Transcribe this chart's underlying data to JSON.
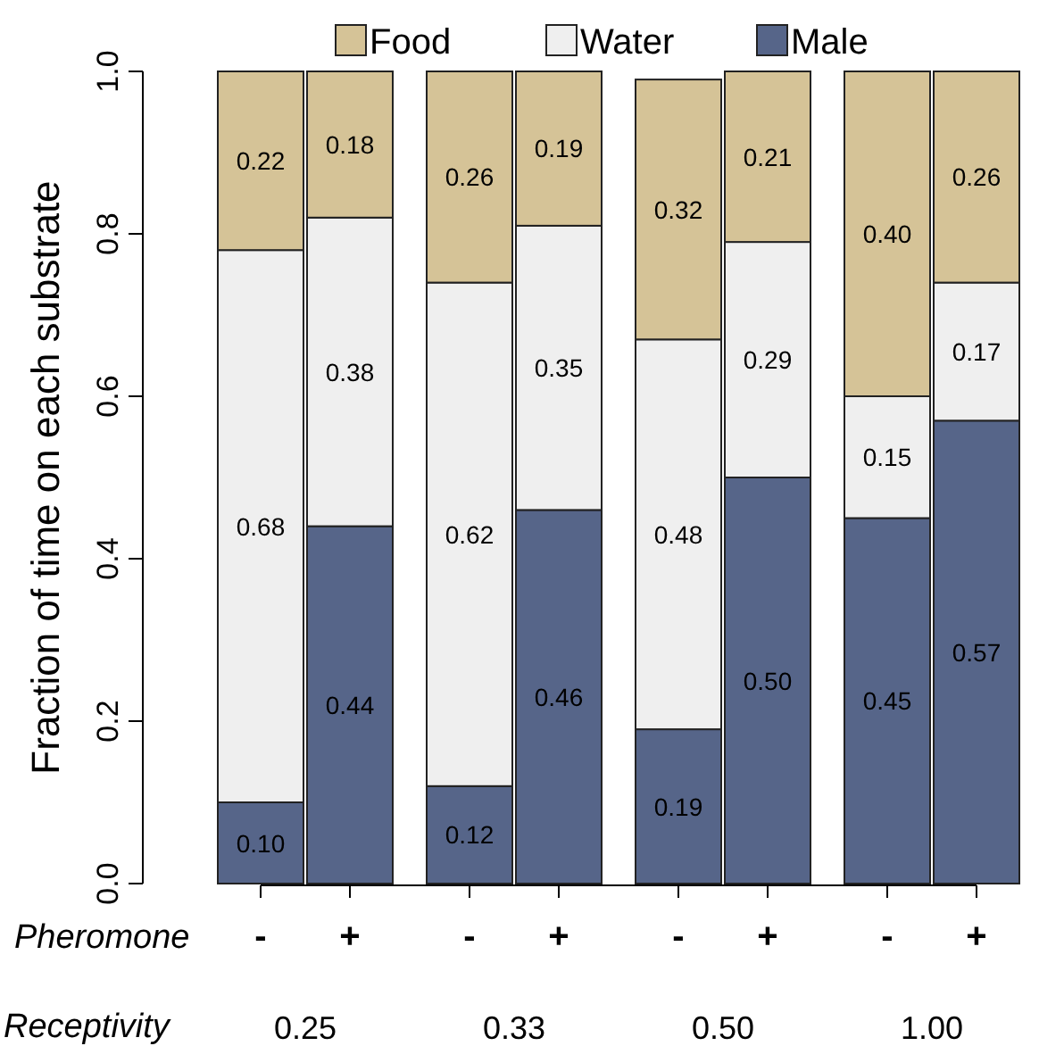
{
  "chart_data": {
    "type": "bar",
    "stacked": true,
    "ylabel": "Fraction of time on each substrate",
    "categories": [
      "-",
      "+",
      "-",
      "+",
      "-",
      "+",
      "-",
      "+"
    ],
    "series": [
      {
        "name": "Male",
        "color": "#566589",
        "values": [
          0.1,
          0.44,
          0.12,
          0.46,
          0.19,
          0.5,
          0.45,
          0.57
        ],
        "value_labels": [
          "0.10",
          "0.44",
          "0.12",
          "0.46",
          "0.19",
          "0.50",
          "0.45",
          "0.57"
        ]
      },
      {
        "name": "Water",
        "color": "#efefef",
        "values": [
          0.68,
          0.38,
          0.62,
          0.35,
          0.48,
          0.29,
          0.15,
          0.17
        ],
        "value_labels": [
          "0.68",
          "0.38",
          "0.62",
          "0.35",
          "0.48",
          "0.29",
          "0.15",
          "0.17"
        ]
      },
      {
        "name": "Food",
        "color": "#d5c397",
        "values": [
          0.22,
          0.18,
          0.26,
          0.19,
          0.32,
          0.21,
          0.4,
          0.26
        ],
        "value_labels": [
          "0.22",
          "0.18",
          "0.26",
          "0.19",
          "0.32",
          "0.21",
          "0.40",
          "0.26"
        ]
      }
    ],
    "ylim": [
      0,
      1
    ],
    "yticks": [
      {
        "value": 0,
        "label": "0.0"
      },
      0.2,
      0.4,
      0.6,
      0.8,
      {
        "value": 1,
        "label": "1.0"
      }
    ],
    "legend": "top",
    "grid": false,
    "annotations": [
      "Pheromone",
      "Receptivity",
      "0.25",
      "0.33",
      "0.50",
      "1.00"
    ]
  }
}
